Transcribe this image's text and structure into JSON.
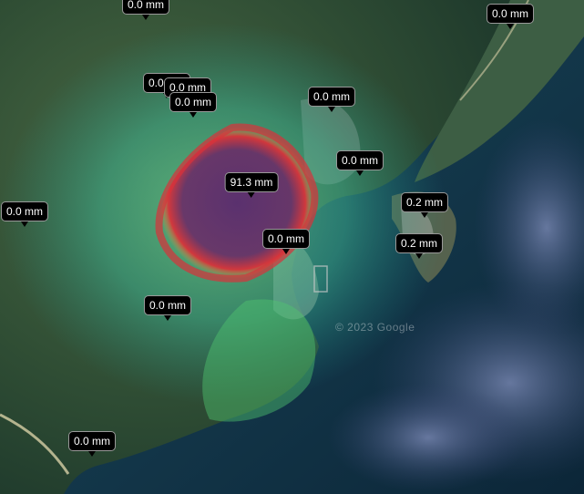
{
  "map": {
    "watermark": "© 2023 Google",
    "colors": {
      "land": "#3a5a3c",
      "water": "#12344a",
      "heat_low": "#1e8f86",
      "heat_mid": "#6fd08a",
      "heat_high": "#d8323a",
      "heat_peak": "#5a2a6e"
    },
    "markers": [
      {
        "id": "north-west",
        "label": "0.0 mm",
        "value": 0.0
      },
      {
        "id": "north-east",
        "label": "0.0 mm",
        "value": 0.0
      },
      {
        "id": "hills-a",
        "label": "0.0 mm",
        "value": 0.0
      },
      {
        "id": "hills-b",
        "label": "0.0 mm",
        "value": 0.0
      },
      {
        "id": "hills-c",
        "label": "0.0 mm",
        "value": 0.0
      },
      {
        "id": "town-north",
        "label": "0.0 mm",
        "value": 0.0
      },
      {
        "id": "town-bay",
        "label": "0.0 mm",
        "value": 0.0
      },
      {
        "id": "peak",
        "label": "91.3 mm",
        "value": 91.3
      },
      {
        "id": "west",
        "label": "0.0 mm",
        "value": 0.0
      },
      {
        "id": "coast-east-1",
        "label": "0.2 mm",
        "value": 0.2
      },
      {
        "id": "harbour",
        "label": "0.0 mm",
        "value": 0.0
      },
      {
        "id": "coast-east-2",
        "label": "0.2 mm",
        "value": 0.2
      },
      {
        "id": "south-hills",
        "label": "0.0 mm",
        "value": 0.0
      },
      {
        "id": "south-coast",
        "label": "0.0 mm",
        "value": 0.0
      }
    ]
  }
}
